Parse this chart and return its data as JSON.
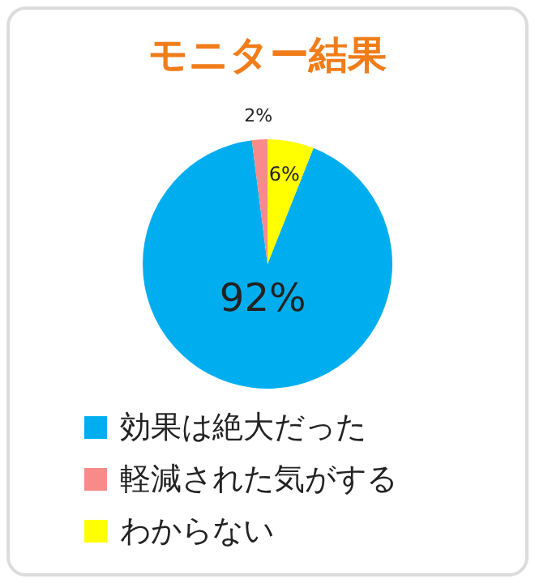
{
  "chart_data": {
    "type": "pie",
    "title": "モニター結果",
    "categories": [
      "効果は絶大だった",
      "軽減された気がする",
      "わからない"
    ],
    "values": [
      92,
      2,
      6
    ],
    "colors": [
      "#00aeef",
      "#f98a8a",
      "#ffff00"
    ],
    "value_labels": [
      "92%",
      "2%",
      "6%"
    ],
    "legend": "bottom"
  }
}
